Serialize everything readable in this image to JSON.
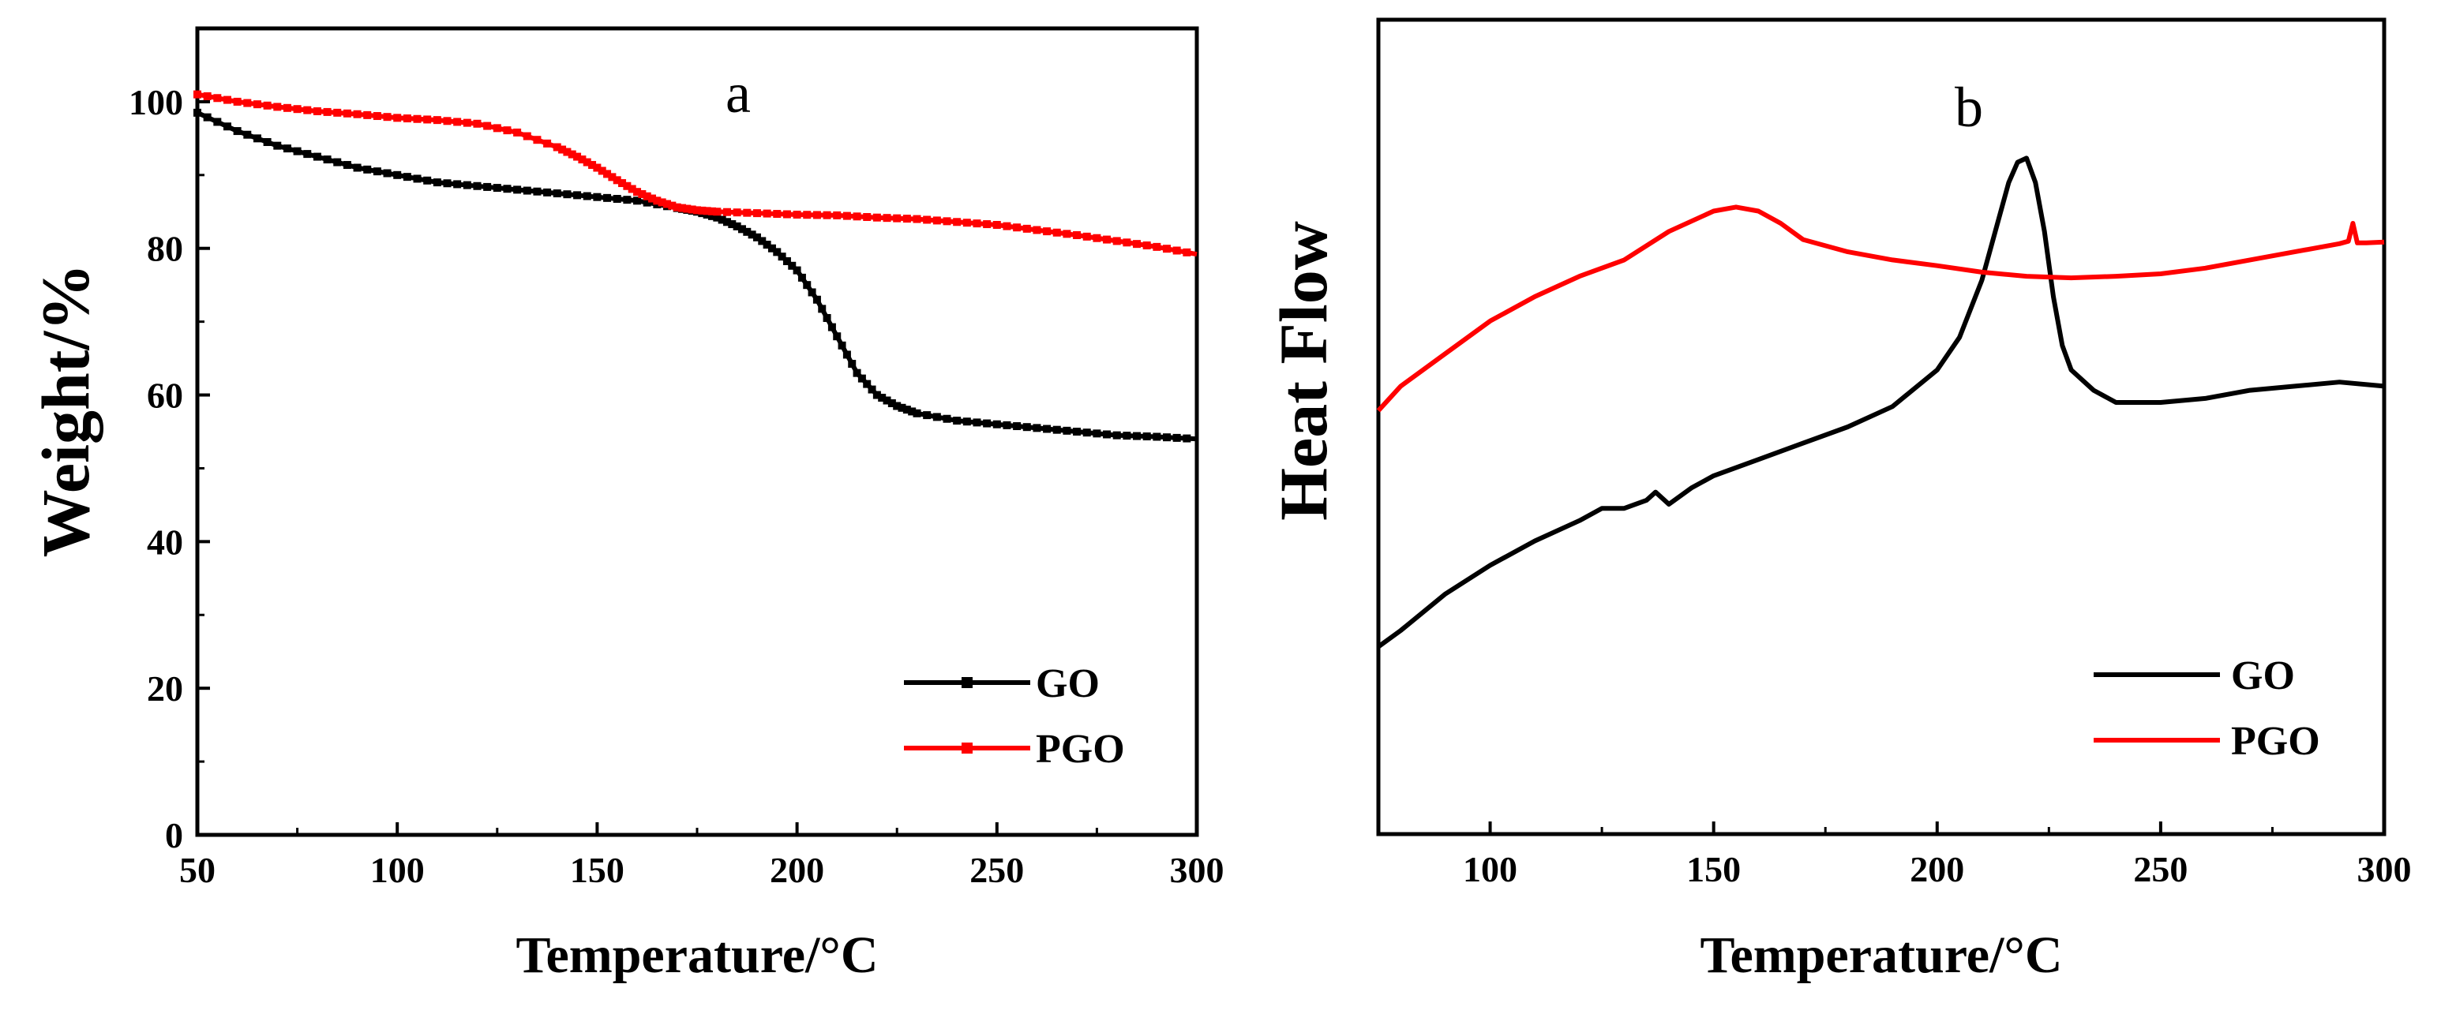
{
  "chart_data": [
    {
      "type": "line",
      "panel_label": "a",
      "xlabel": "Temperature/°C",
      "ylabel": "Weight/%",
      "xlim": [
        50,
        300
      ],
      "ylim": [
        0,
        110
      ],
      "xticks": [
        50,
        100,
        150,
        200,
        250,
        300
      ],
      "yticks": [
        0,
        20,
        40,
        60,
        80,
        100
      ],
      "xtick_labels": [
        "50",
        "100",
        "150",
        "200",
        "250",
        "300"
      ],
      "ytick_labels": [
        "0",
        "20",
        "40",
        "60",
        "80",
        "100"
      ],
      "legend_position": "bottom-right",
      "series": [
        {
          "name": "GO",
          "color": "#000000",
          "marker": "square",
          "x": [
            50,
            60,
            70,
            80,
            90,
            100,
            110,
            120,
            130,
            140,
            150,
            160,
            170,
            175,
            180,
            185,
            190,
            195,
            200,
            205,
            210,
            215,
            220,
            225,
            230,
            240,
            250,
            260,
            270,
            280,
            290,
            300
          ],
          "y": [
            98.5,
            96,
            94,
            92.5,
            91,
            90,
            89,
            88.5,
            88,
            87.5,
            87,
            86.5,
            85.5,
            85,
            84.2,
            83,
            81.5,
            79.5,
            77,
            73,
            68,
            63,
            60,
            58.5,
            57.5,
            56.5,
            56,
            55.5,
            55,
            54.5,
            54.3,
            54
          ]
        },
        {
          "name": "PGO",
          "color": "#ff0000",
          "marker": "square",
          "x": [
            50,
            60,
            70,
            80,
            90,
            100,
            110,
            120,
            130,
            140,
            145,
            150,
            155,
            160,
            165,
            170,
            175,
            180,
            190,
            200,
            210,
            220,
            230,
            240,
            250,
            260,
            270,
            280,
            290,
            300
          ],
          "y": [
            101,
            100,
            99.3,
            98.7,
            98.3,
            97.8,
            97.5,
            97,
            95.8,
            93.8,
            92.5,
            91,
            89.3,
            87.7,
            86.5,
            85.6,
            85.2,
            85,
            84.8,
            84.6,
            84.5,
            84.2,
            84,
            83.6,
            83.2,
            82.5,
            81.8,
            81,
            80.2,
            79.2
          ]
        }
      ]
    },
    {
      "type": "line",
      "panel_label": "b",
      "xlabel": "Temperature/°C",
      "ylabel": "Heat Flow",
      "xlim": [
        75,
        300
      ],
      "ylim": [
        0,
        100
      ],
      "xticks": [
        100,
        150,
        200,
        250,
        300
      ],
      "xtick_labels": [
        "100",
        "150",
        "200",
        "250",
        "300"
      ],
      "yticks": [],
      "legend_position": "bottom-right",
      "series": [
        {
          "name": "GO",
          "color": "#000000",
          "x": [
            75,
            80,
            90,
            100,
            110,
            120,
            125,
            130,
            135,
            137,
            140,
            145,
            150,
            160,
            170,
            180,
            190,
            200,
            205,
            210,
            213,
            216,
            218,
            220,
            222,
            224,
            226,
            228,
            230,
            235,
            240,
            250,
            260,
            270,
            280,
            290,
            300
          ],
          "y": [
            23,
            25,
            29.5,
            33,
            36,
            38.5,
            40,
            40,
            41,
            42,
            40.5,
            42.5,
            44,
            46,
            48,
            50,
            52.5,
            57,
            61,
            68,
            74,
            80,
            82.5,
            83,
            80,
            74,
            66,
            60,
            57,
            54.5,
            53,
            53,
            53.5,
            54.5,
            55,
            55.5,
            55
          ]
        },
        {
          "name": "PGO",
          "color": "#ff0000",
          "x": [
            75,
            80,
            90,
            100,
            110,
            120,
            130,
            140,
            150,
            155,
            160,
            165,
            170,
            180,
            190,
            200,
            210,
            220,
            230,
            240,
            250,
            260,
            270,
            280,
            290,
            292,
            293,
            294,
            296,
            300
          ],
          "y": [
            52,
            55,
            59,
            63,
            66,
            68.5,
            70.5,
            74,
            76.5,
            77,
            76.5,
            75,
            73,
            71.5,
            70.5,
            69.8,
            69,
            68.5,
            68.3,
            68.5,
            68.8,
            69.5,
            70.5,
            71.5,
            72.5,
            72.8,
            75,
            72.6,
            72.6,
            72.7
          ]
        }
      ]
    }
  ]
}
